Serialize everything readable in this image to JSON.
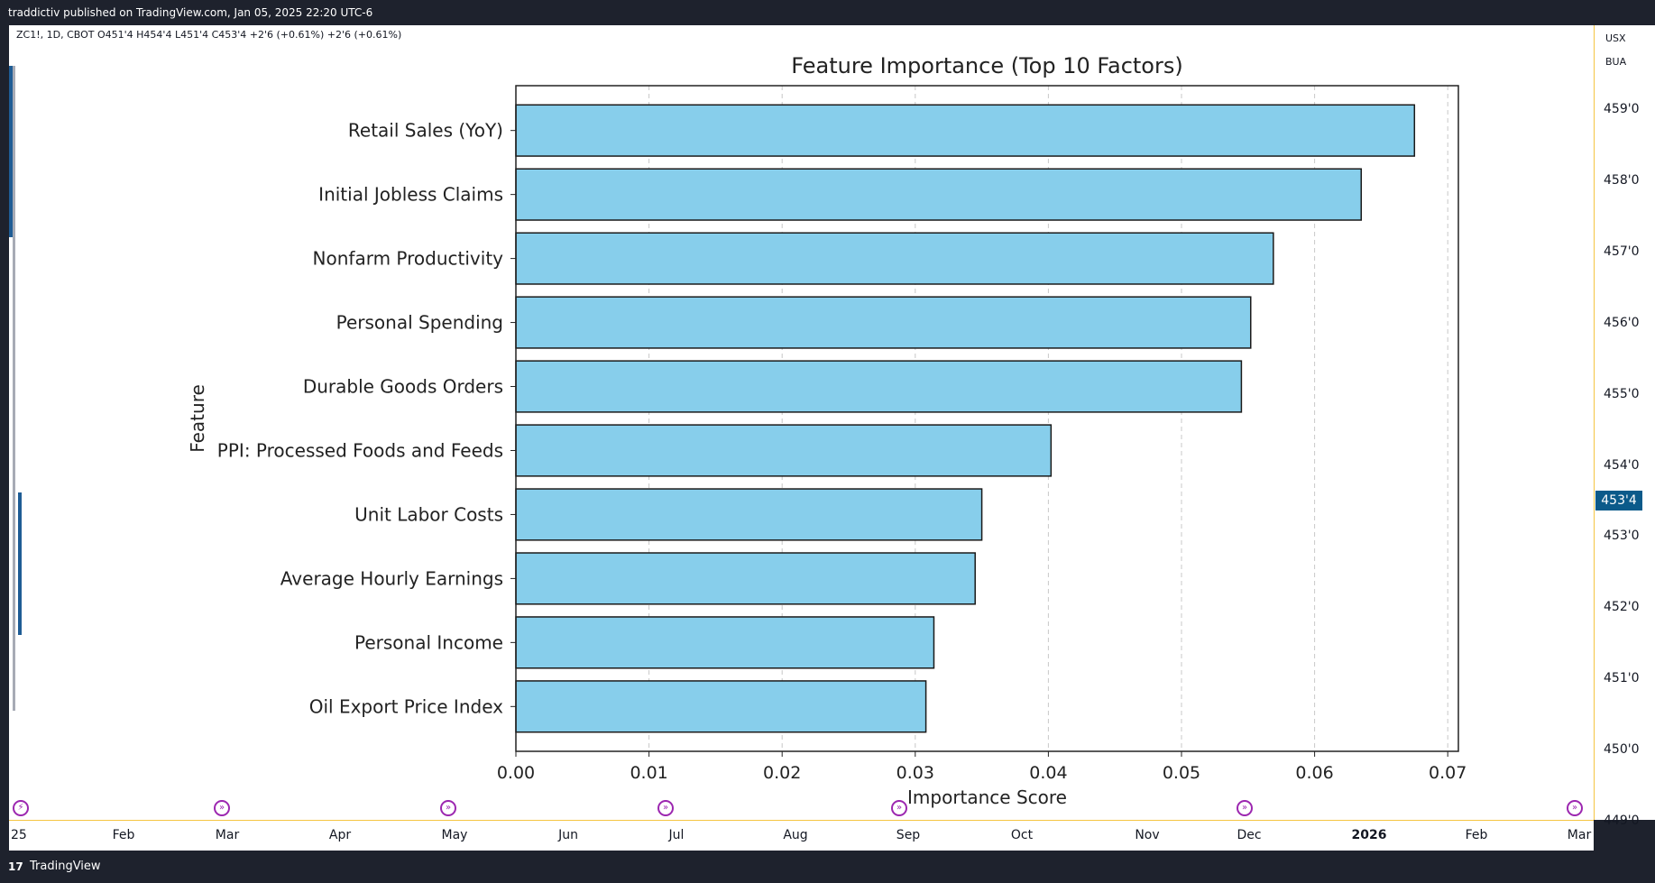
{
  "header": {
    "published": "traddictiv published on TradingView.com, Jan 05, 2025 22:20 UTC-6"
  },
  "symbol_info": "ZC1!, 1D, CBOT  O451'4  H454'4  L451'4  C453'4  +2'6 (+0.61%)  +2'6 (+0.61%)",
  "price_axis": {
    "currency": "USX",
    "unit": "BUA",
    "ticks": [
      "459'0",
      "458'0",
      "457'0",
      "456'0",
      "455'0",
      "454'0",
      "453'0",
      "452'0",
      "451'0",
      "450'0",
      "449'0"
    ],
    "current_price": "453'4",
    "accent_color": "#0b5a8a"
  },
  "time_axis": {
    "ticks": [
      "25",
      "Feb",
      "Mar",
      "Apr",
      "May",
      "Jun",
      "Jul",
      "Aug",
      "Sep",
      "Oct",
      "Nov",
      "Dec",
      "2026",
      "Feb",
      "Mar"
    ],
    "bold_tick": "2026"
  },
  "footer": {
    "logo": "17",
    "brand": "TradingView"
  },
  "markers": [
    "lightning-icon",
    "arrow-icon",
    "arrow-icon",
    "arrow-icon",
    "arrow-icon",
    "arrow-icon",
    "arrow-icon"
  ],
  "chart_data": {
    "type": "bar",
    "orientation": "horizontal",
    "title": "Feature Importance (Top 10 Factors)",
    "xlabel": "Importance Score",
    "ylabel": "Feature",
    "categories": [
      "Retail Sales (YoY)",
      "Initial Jobless Claims",
      "Nonfarm Productivity",
      "Personal Spending",
      "Durable Goods Orders",
      "PPI: Processed Foods and Feeds",
      "Unit Labor Costs",
      "Average Hourly Earnings",
      "Personal Income",
      "Oil Export Price Index"
    ],
    "values": [
      0.0675,
      0.0635,
      0.0569,
      0.0552,
      0.0545,
      0.0402,
      0.035,
      0.0345,
      0.0314,
      0.0308
    ],
    "xlim": [
      0,
      0.0708
    ],
    "xticks": [
      "0.00",
      "0.01",
      "0.02",
      "0.03",
      "0.04",
      "0.05",
      "0.06",
      "0.07"
    ],
    "grid": "x dashed",
    "bar_color": "#87ceeb",
    "edge_color": "#1a1a1a"
  }
}
